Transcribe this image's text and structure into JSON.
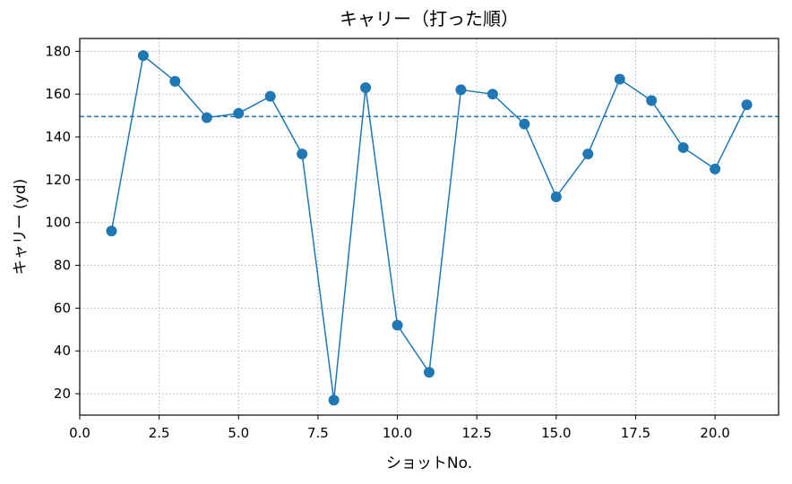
{
  "chart_data": {
    "type": "line",
    "title": "キャリー（打った順）",
    "xlabel": "ショットNo.",
    "ylabel": "キャリー (yd)",
    "xlim": [
      0,
      22
    ],
    "ylim": [
      10,
      186
    ],
    "xticks": [
      0,
      2.5,
      5,
      7.5,
      10,
      12.5,
      15,
      17.5,
      20
    ],
    "xtick_labels": [
      "0.0",
      "2.5",
      "5.0",
      "7.5",
      "10.0",
      "12.5",
      "15.0",
      "17.5",
      "20.0"
    ],
    "yticks": [
      20,
      40,
      60,
      80,
      100,
      120,
      140,
      160,
      180
    ],
    "ytick_labels": [
      "20",
      "40",
      "60",
      "80",
      "100",
      "120",
      "140",
      "160",
      "180"
    ],
    "grid": true,
    "line_color": "#1f77b4",
    "reference_line": {
      "y": 149.5,
      "style": "dashed",
      "color": "#1f77b4"
    },
    "series": [
      {
        "x": [
          1,
          2,
          3,
          4,
          5,
          6,
          7,
          8,
          9,
          10,
          11,
          12,
          13,
          14,
          15,
          16,
          17,
          18,
          19,
          20,
          21
        ],
        "values": [
          96,
          178,
          166,
          149,
          151,
          159,
          132,
          17,
          163,
          52,
          30,
          162,
          160,
          146,
          112,
          132,
          167,
          157,
          135,
          125,
          155
        ]
      }
    ]
  }
}
